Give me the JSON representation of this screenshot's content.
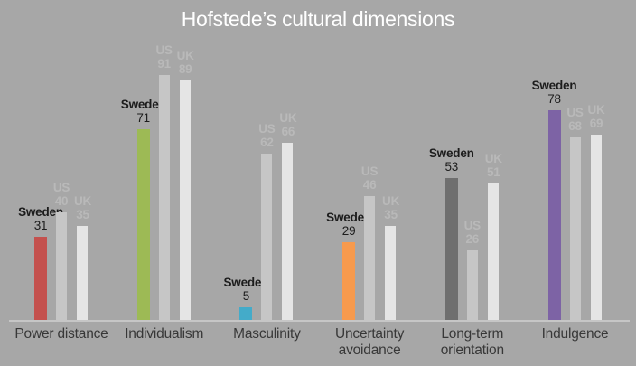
{
  "chart_data": {
    "type": "bar",
    "title": "Hofstede’s cultural dimensions",
    "categories": [
      "Power distance",
      "Individualism",
      "Masculinity",
      "Uncertainty avoidance",
      "Long-term orientation",
      "Indulgence"
    ],
    "series": [
      {
        "name": "Sweden",
        "values": [
          31,
          71,
          5,
          29,
          53,
          78
        ],
        "colors": [
          "#c4514e",
          "#9dba55",
          "#44abc9",
          "#f79a4d",
          "#6f6f6f",
          "#7d63a5"
        ],
        "label_color": "#1c1c1c",
        "emphasized": true
      },
      {
        "name": "US",
        "values": [
          40,
          91,
          62,
          46,
          26,
          68
        ],
        "color": "#c6c6c6",
        "label_color": "#b9b9b9",
        "emphasized": false
      },
      {
        "name": "UK",
        "values": [
          35,
          89,
          66,
          35,
          51,
          69
        ],
        "color": "#e5e5e5",
        "label_color": "#b9b9b9",
        "emphasized": false
      }
    ],
    "ylim": [
      0,
      100
    ],
    "value_labels": true,
    "grid": false,
    "legend_position": "none",
    "background_color": "#a7a7a7",
    "title_color": "#ffffff",
    "axis_line_color": "#c6c6c6",
    "category_label_color": "#383838"
  }
}
